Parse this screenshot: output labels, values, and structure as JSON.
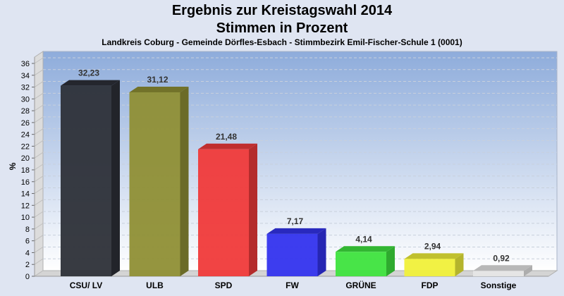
{
  "chart_data": {
    "type": "bar",
    "title": "Ergebnis zur Kreistagswahl 2014",
    "subtitle": "Stimmen in Prozent",
    "caption": "Landkreis Coburg - Gemeinde Dörfles-Esbach - Stimmbezirk Emil-Fischer-Schule 1 (0001)",
    "xlabel": "",
    "ylabel": "%",
    "ylim": [
      0,
      36
    ],
    "yticks": [
      0,
      2,
      4,
      6,
      8,
      10,
      12,
      14,
      16,
      18,
      20,
      22,
      24,
      26,
      28,
      30,
      32,
      34,
      36
    ],
    "grid": true,
    "categories": [
      "CSU/ LV",
      "ULB",
      "SPD",
      "FW",
      "GRÜNE",
      "FDP",
      "Sonstige"
    ],
    "values": [
      32.23,
      31.12,
      21.48,
      7.17,
      4.14,
      2.94,
      0.92
    ],
    "value_labels": [
      "32,23",
      "31,12",
      "21,48",
      "7,17",
      "4,14",
      "2,94",
      "0,92"
    ],
    "colors": [
      "#2d3038",
      "#8f8f35",
      "#f03a3a",
      "#3333ee",
      "#3ee33e",
      "#f0f03a",
      "#e6e6e6"
    ]
  }
}
